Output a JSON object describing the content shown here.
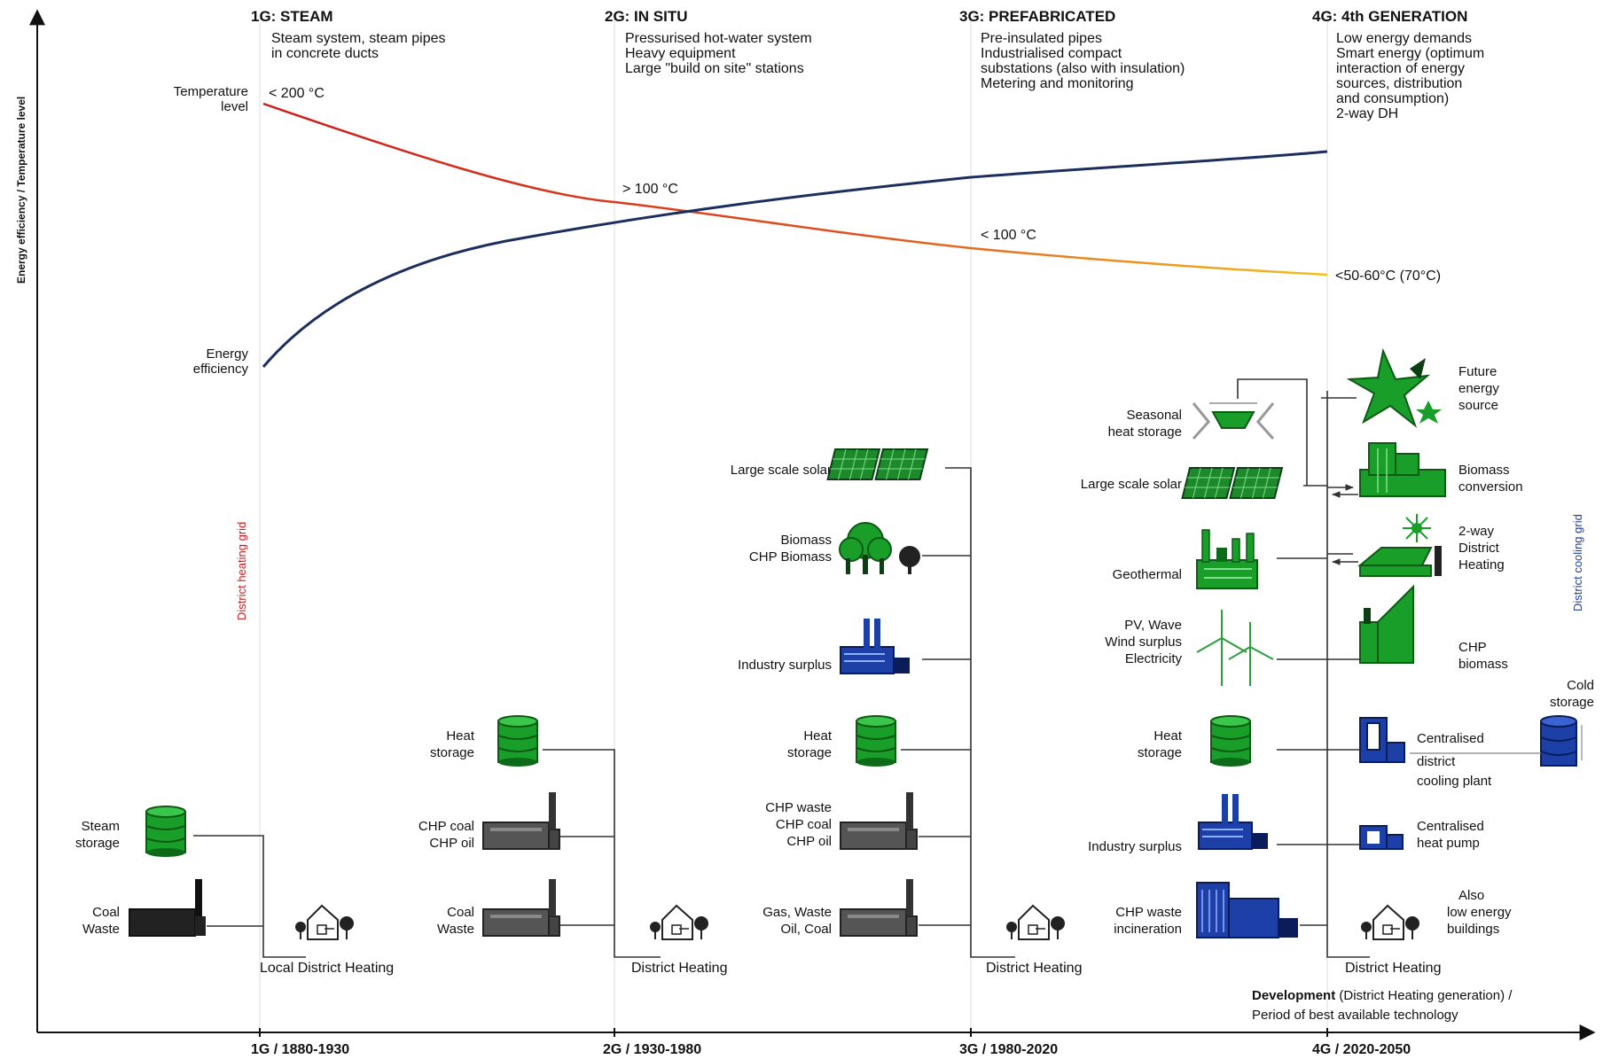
{
  "y_axis_label": "Energy efficiency / Temperature level",
  "x_axis_label_bold": "Development",
  "x_axis_label_rest": " (District Heating generation) /",
  "x_axis_label_line2": "Period of best available technology",
  "generations": [
    {
      "title": "1G: STEAM",
      "desc": [
        "Steam system, steam pipes",
        "in concrete ducts"
      ],
      "tick": "1G / 1880-1930"
    },
    {
      "title": "2G: IN SITU",
      "desc": [
        "Pressurised hot-water system",
        "Heavy equipment",
        "Large \"build on site\" stations"
      ],
      "tick": "2G / 1930-1980"
    },
    {
      "title": "3G: PREFABRICATED",
      "desc": [
        "Pre-insulated pipes",
        "Industrialised compact",
        "substations (also with insulation)",
        "Metering and monitoring"
      ],
      "tick": "3G / 1980-2020"
    },
    {
      "title": "4G: 4th GENERATION",
      "desc": [
        "Low energy demands",
        "Smart energy (optimum",
        "interaction of energy",
        "sources, distribution",
        "and consumption)",
        "2-way DH"
      ],
      "tick": "4G / 2020-2050"
    }
  ],
  "curves": {
    "temperature_label": [
      "Temperature",
      "level"
    ],
    "efficiency_label": [
      "Energy",
      "efficiency"
    ],
    "temps": [
      "< 200 °C",
      "> 100 °C",
      "< 100 °C",
      "<50-60°C (70°C)"
    ]
  },
  "grid_labels": {
    "heating": "District heating grid",
    "cooling": "District cooling grid"
  },
  "network_labels": [
    "Local District Heating",
    "District Heating",
    "District Heating",
    "District Heating"
  ],
  "g1": {
    "steam_storage": [
      "Steam",
      "storage"
    ],
    "coal_waste": [
      "Coal",
      "Waste"
    ]
  },
  "g2": {
    "heat_storage": [
      "Heat",
      "storage"
    ],
    "chp": [
      "CHP coal",
      "CHP oil"
    ],
    "coal_waste": [
      "Coal",
      "Waste"
    ]
  },
  "g3": {
    "solar": "Large scale solar",
    "biomass": [
      "Biomass",
      "CHP Biomass"
    ],
    "industry": "Industry surplus",
    "heat_storage": [
      "Heat",
      "storage"
    ],
    "chp": [
      "CHP waste",
      "CHP coal",
      "CHP oil"
    ],
    "gas": [
      "Gas, Waste",
      "Oil, Coal"
    ]
  },
  "g4left": {
    "seasonal": [
      "Seasonal",
      "heat storage"
    ],
    "solar": "Large scale solar",
    "geothermal": "Geothermal",
    "pv": [
      "PV, Wave",
      "Wind surplus",
      "Electricity"
    ],
    "heat_storage": [
      "Heat",
      "storage"
    ],
    "industry": "Industry surplus",
    "chp": [
      "CHP waste",
      "incineration"
    ]
  },
  "g4right": {
    "future": [
      "Future",
      "energy",
      "source"
    ],
    "biomass": [
      "Biomass",
      "conversion"
    ],
    "twoway": [
      "2-way",
      "District",
      "Heating"
    ],
    "chp": [
      "CHP",
      "biomass"
    ],
    "cooling_plant": [
      "Centralised",
      "district",
      "cooling plant"
    ],
    "cold_storage": [
      "Cold",
      "storage"
    ],
    "heat_pump": [
      "Centralised",
      "heat pump"
    ],
    "low_energy": [
      "Also",
      "low energy",
      "buildings"
    ]
  },
  "colors": {
    "efficiency_curve": "#1c2e5e",
    "temp_start": "#cc1a1a",
    "temp_end": "#f0c020",
    "green": "#1a9e2a",
    "green_dark": "#0d6a18",
    "blue": "#1d3fa8",
    "gray": "#555555",
    "heating_grid_text": "#c81e1e",
    "cooling_grid_text": "#1d3fa8"
  }
}
